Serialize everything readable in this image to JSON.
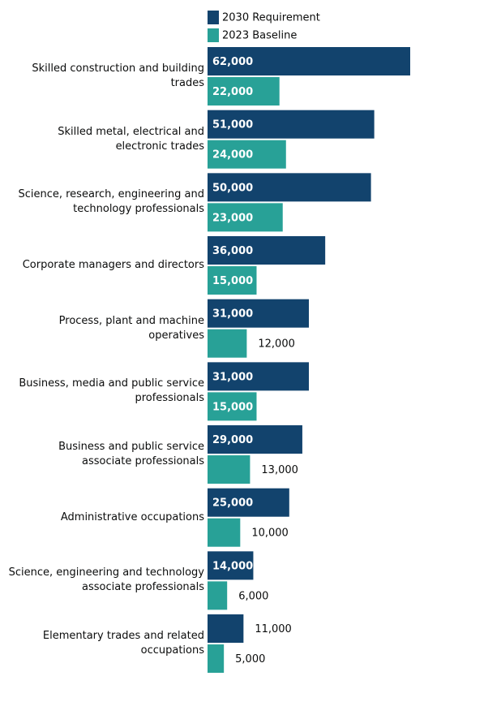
{
  "chart_data": {
    "type": "bar",
    "orientation": "horizontal",
    "categories": [
      "Skilled construction and building trades",
      "Skilled metal, electrical and electronic trades",
      "Science, research, engineering and technology professionals",
      "Corporate managers and directors",
      "Process, plant and machine operatives",
      "Business, media and public service professionals",
      "Business and public service associate professionals",
      "Administrative occupations",
      "Science, engineering and technology associate professionals",
      "Elementary trades and related occupations"
    ],
    "series": [
      {
        "name": "2030 Requirement",
        "color": "#12436d",
        "values": [
          62000,
          51000,
          50000,
          36000,
          31000,
          31000,
          29000,
          25000,
          14000,
          11000
        ],
        "value_labels": [
          "62,000",
          "51,000",
          "50,000",
          "36,000",
          "31,000",
          "31,000",
          "29,000",
          "25,000",
          "14,000",
          "11,000"
        ]
      },
      {
        "name": "2023 Baseline",
        "color": "#28a197",
        "values": [
          22000,
          24000,
          23000,
          15000,
          12000,
          15000,
          13000,
          10000,
          6000,
          5000
        ],
        "value_labels": [
          "22,000",
          "24,000",
          "23,000",
          "15,000",
          "12,000",
          "15,000",
          "13,000",
          "10,000",
          "6,000",
          "5,000"
        ]
      }
    ]
  }
}
